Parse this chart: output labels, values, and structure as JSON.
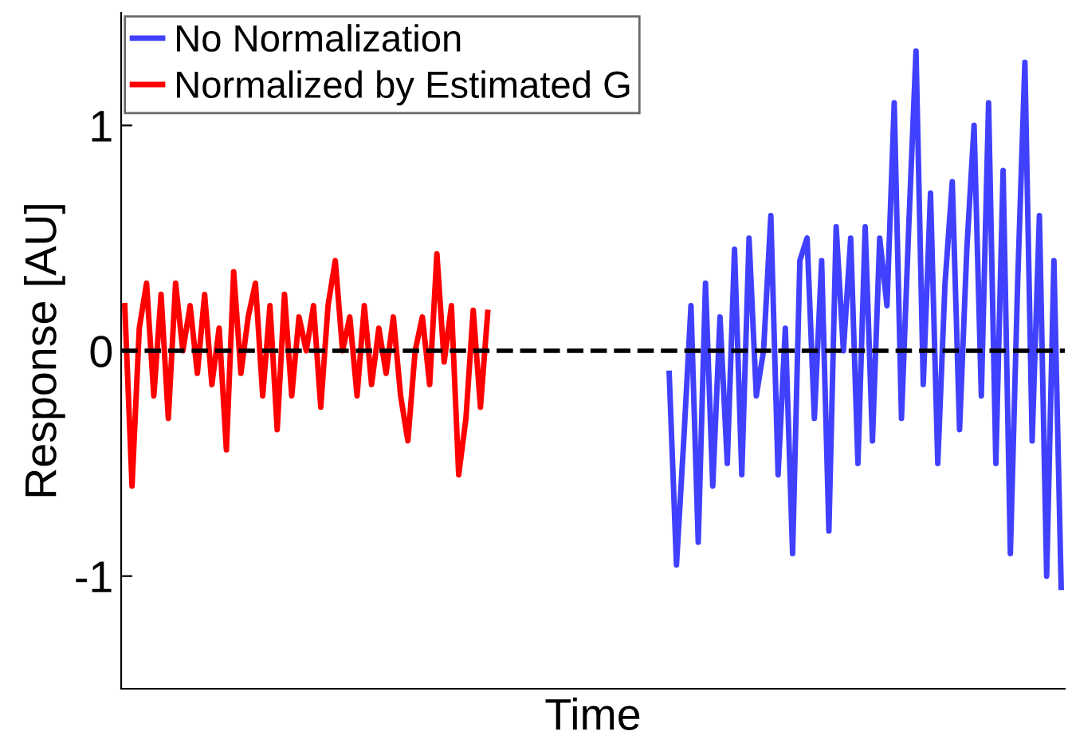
{
  "chart_data": {
    "type": "line",
    "xlabel": "Time",
    "ylabel": "Response [AU]",
    "categories": [
      null,
      null,
      null,
      null,
      null,
      null,
      null,
      null,
      null,
      null,
      null,
      null,
      null,
      null,
      null,
      null,
      null,
      null,
      null,
      null,
      null,
      null,
      null,
      null,
      null,
      null,
      null,
      null,
      null,
      null,
      null,
      null,
      null,
      null,
      null,
      null,
      null,
      null,
      null,
      null,
      null,
      null,
      null,
      null,
      null,
      null,
      null,
      null,
      null,
      null,
      null,
      null,
      null,
      null,
      null,
      null,
      null,
      null,
      null,
      null,
      null,
      null,
      null,
      null,
      null,
      null,
      null,
      null,
      null,
      null,
      null,
      null,
      null,
      null,
      null,
      null,
      null,
      null,
      null,
      null,
      null,
      null,
      null,
      null,
      null,
      null,
      null,
      null,
      null,
      null,
      null,
      null,
      null,
      null,
      null,
      null,
      null,
      null,
      null,
      null,
      null,
      null,
      null,
      null,
      null,
      null,
      null,
      null,
      null,
      null,
      null,
      null,
      null,
      null,
      null,
      null,
      null,
      null,
      null,
      null,
      null,
      null,
      null,
      null,
      null,
      null,
      null,
      null,
      null,
      null
    ],
    "series": [
      {
        "name": "No Normalization",
        "color": "#4040ff",
        "values": [
          null,
          null,
          null,
          null,
          null,
          null,
          null,
          null,
          null,
          null,
          null,
          null,
          null,
          null,
          null,
          null,
          null,
          null,
          null,
          null,
          null,
          null,
          null,
          null,
          null,
          null,
          null,
          null,
          null,
          null,
          null,
          null,
          null,
          null,
          null,
          null,
          null,
          null,
          null,
          null,
          null,
          null,
          null,
          null,
          null,
          null,
          null,
          null,
          null,
          null,
          null,
          null,
          null,
          null,
          null,
          null,
          null,
          null,
          null,
          null,
          null,
          null,
          null,
          null,
          null,
          null,
          null,
          null,
          null,
          null,
          null,
          null,
          null,
          null,
          null,
          -0.1,
          -0.95,
          -0.4,
          0.2,
          -0.85,
          0.3,
          -0.6,
          0.15,
          -0.5,
          0.45,
          -0.55,
          0.5,
          -0.2,
          0.0,
          0.6,
          -0.55,
          0.1,
          -0.9,
          0.4,
          0.5,
          -0.3,
          0.4,
          -0.8,
          0.55,
          0.0,
          0.5,
          -0.5,
          0.55,
          -0.4,
          0.5,
          0.2,
          1.1,
          -0.3,
          0.55,
          1.33,
          -0.15,
          0.7,
          -0.5,
          0.3,
          0.75,
          -0.35,
          0.45,
          1.0,
          -0.2,
          1.1,
          -0.5,
          0.8,
          -0.9,
          0.3,
          1.28,
          -0.4,
          0.6,
          -1.0,
          0.4,
          -1.05
        ]
      },
      {
        "name": "Normalized by Estimated G",
        "color": "#ff0000",
        "values": [
          0.2,
          -0.6,
          0.1,
          0.3,
          -0.2,
          0.25,
          -0.3,
          0.3,
          0.0,
          0.2,
          -0.1,
          0.25,
          -0.15,
          0.1,
          -0.44,
          0.35,
          -0.1,
          0.15,
          0.3,
          -0.2,
          0.2,
          -0.35,
          0.25,
          -0.2,
          0.15,
          0.0,
          0.2,
          -0.25,
          0.2,
          0.4,
          0.0,
          0.15,
          -0.2,
          0.2,
          -0.15,
          0.1,
          -0.1,
          0.15,
          -0.2,
          -0.4,
          0.0,
          0.15,
          -0.15,
          0.43,
          -0.05,
          0.2,
          -0.55,
          -0.3,
          0.18,
          -0.25,
          0.17,
          null,
          null,
          null,
          null,
          null,
          null,
          null,
          null,
          null,
          null,
          null,
          null,
          null,
          null,
          null,
          null,
          null,
          null,
          null,
          null,
          null,
          null,
          null,
          null,
          null,
          null,
          null,
          null,
          null,
          null,
          null,
          null,
          null,
          null,
          null,
          null,
          null,
          null,
          null,
          null,
          null,
          null,
          null,
          null,
          null,
          null,
          null,
          null,
          null,
          null,
          null,
          null,
          null,
          null,
          null,
          null,
          null,
          null,
          null,
          null,
          null,
          null,
          null,
          null,
          null,
          null,
          null,
          null,
          null,
          null,
          null,
          null,
          null,
          null,
          null,
          null,
          null,
          null,
          null
        ]
      }
    ],
    "ylim": [
      -1.5,
      1.5
    ],
    "yticks": [
      -1,
      0,
      1
    ],
    "ref_lines": [
      {
        "axis": "y",
        "value": 0,
        "color": "#000000",
        "line_style": "dashed"
      }
    ],
    "legend": "top left",
    "tick_labels": "y",
    "grid": false,
    "marker": "none",
    "line_style": "solid"
  }
}
